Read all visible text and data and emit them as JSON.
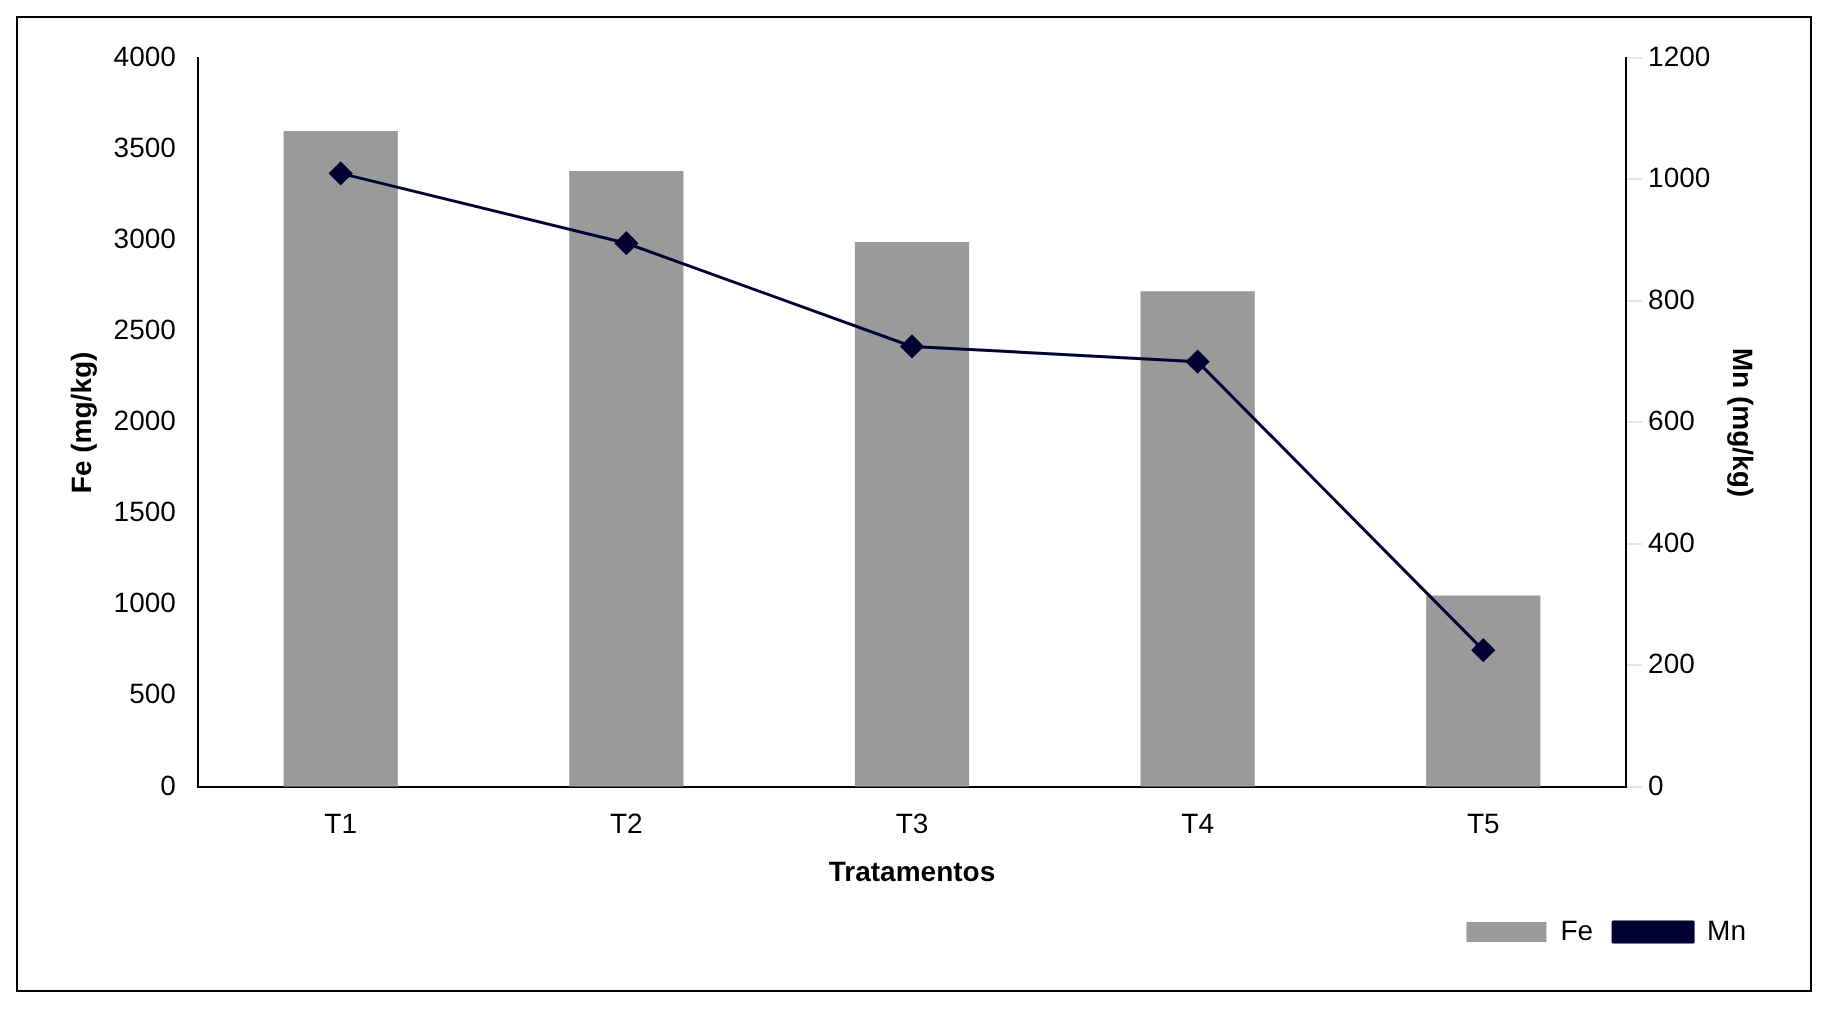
{
  "chart_data": {
    "type": "bar",
    "xlabel": "Tratamentos",
    "ylabel": "Fe (mg/kg)",
    "y2label": "Mn (mg/kg)",
    "categories": [
      "T1",
      "T2",
      "T3",
      "T4",
      "T5"
    ],
    "series": [
      {
        "name": "Fe",
        "color": "#9a9a9a",
        "values": [
          3600,
          3380,
          2990,
          2720,
          1050
        ]
      },
      {
        "name": "Mn",
        "type": "line",
        "axis": "y2",
        "color": "#000033",
        "marker": "diamond",
        "values": [
          1010,
          895,
          725,
          700,
          225
        ]
      }
    ],
    "ylim": [
      0,
      4000
    ],
    "yticks": [
      0,
      500,
      1000,
      1500,
      2000,
      2500,
      3000,
      3500,
      4000
    ],
    "y2lim": [
      0,
      1200
    ],
    "y2ticks": [
      0,
      200,
      400,
      600,
      800,
      1000,
      1200
    ],
    "grid": false,
    "legend": "bottom right"
  }
}
